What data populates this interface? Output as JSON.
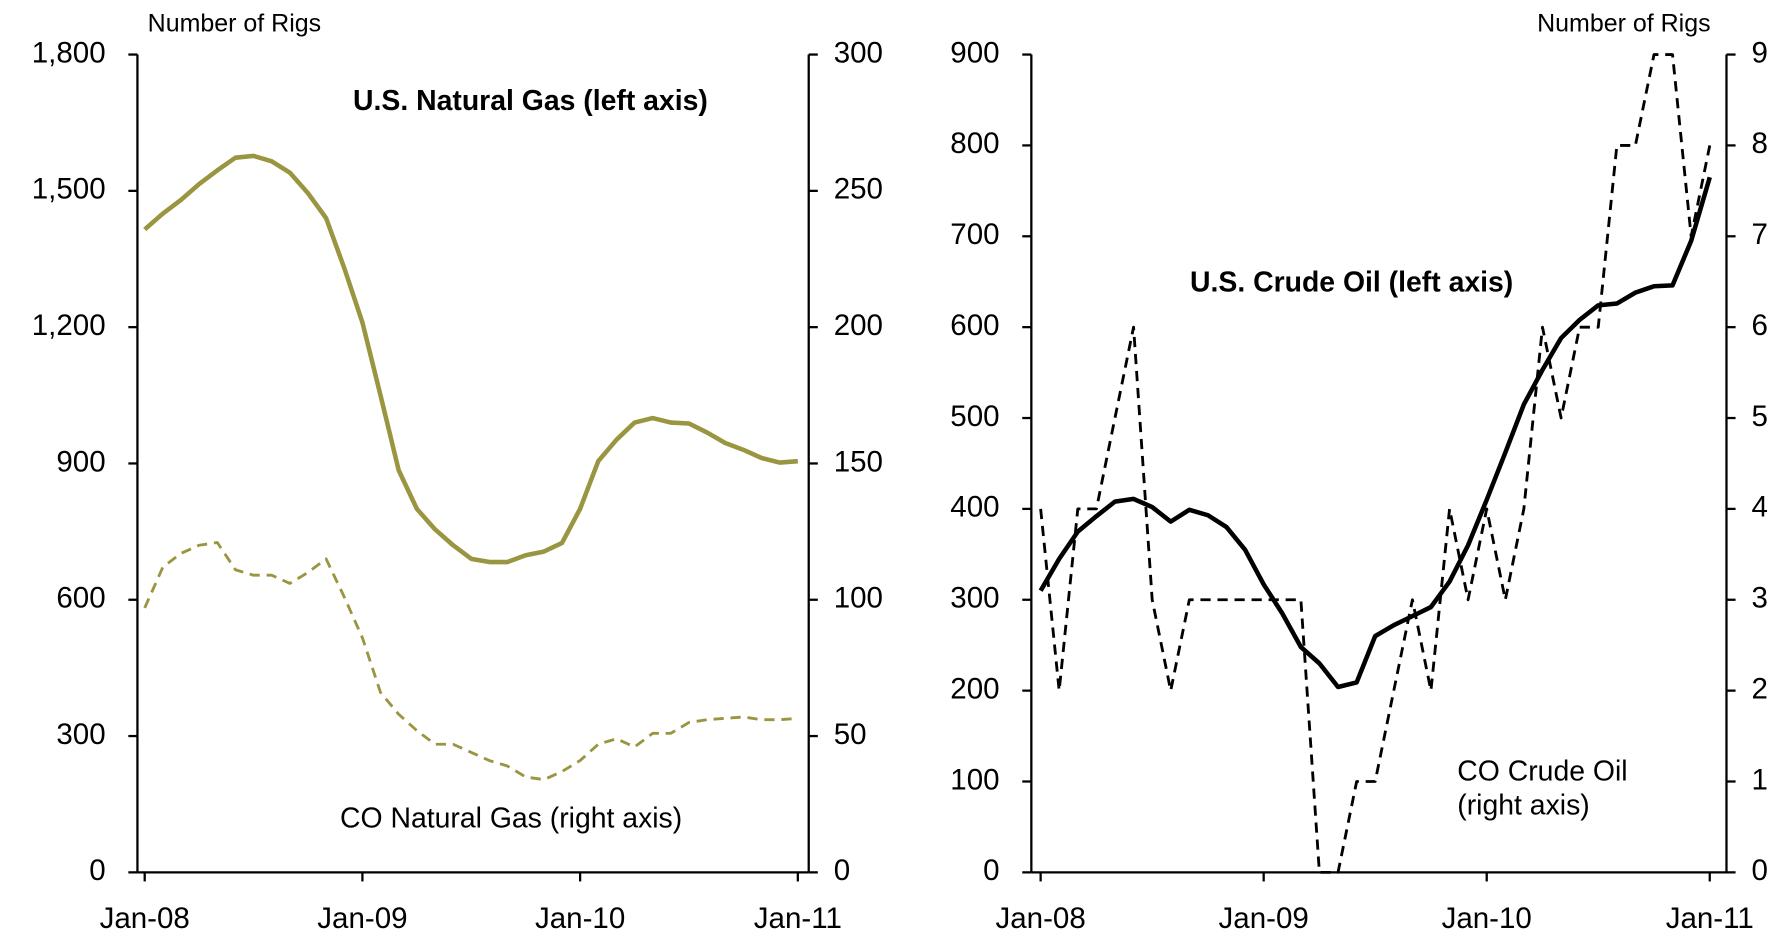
{
  "chart_data": [
    {
      "type": "line",
      "y_unit_label": "Number of Rigs",
      "x": [
        0,
        1,
        2,
        3,
        4,
        5,
        6,
        7,
        8,
        9,
        10,
        11,
        12,
        13,
        14,
        15,
        16,
        17,
        18,
        19,
        20,
        21,
        22,
        23,
        24,
        25,
        26,
        27,
        28,
        29,
        30,
        31,
        32,
        33,
        34,
        35,
        36
      ],
      "xlim": [
        -0.4,
        36.6
      ],
      "xticks": [
        {
          "value": 0,
          "label": "Jan-08"
        },
        {
          "value": 12,
          "label": "Jan-09"
        },
        {
          "value": 24,
          "label": "Jan-10"
        },
        {
          "value": 36,
          "label": "Jan-11"
        }
      ],
      "ylim": [
        0,
        1800
      ],
      "yticks": [
        0,
        300,
        600,
        900,
        {
          "value": 1200,
          "label": "1,200"
        },
        {
          "value": 1500,
          "label": "1,500"
        },
        {
          "value": 1800,
          "label": "1,800"
        }
      ],
      "y2lim": [
        0,
        300
      ],
      "y2ticks": [
        0,
        50,
        100,
        150,
        200,
        250,
        300
      ],
      "series": [
        {
          "name": "U.S. Natural Gas (left axis)",
          "color": "#9a9540",
          "line_style": "solid",
          "label_bold": true,
          "values": [
            1415,
            1450,
            1480,
            1515,
            1545,
            1573,
            1577,
            1565,
            1540,
            1495,
            1440,
            1330,
            1210,
            1050,
            885,
            800,
            755,
            720,
            690,
            683,
            683,
            698,
            706,
            725,
            800,
            905,
            952,
            990,
            1000,
            990,
            988,
            968,
            945,
            930,
            912,
            902,
            905
          ]
        },
        {
          "name": "CO Natural Gas (right axis)",
          "color": "#9a9540",
          "line_style": "dashed",
          "label_bold": false,
          "axis": "y2",
          "values": [
            97,
            112,
            117,
            120,
            121,
            111,
            109,
            109,
            106,
            110,
            115,
            101,
            86,
            66,
            58,
            52,
            47,
            47,
            44,
            41,
            39,
            35,
            34,
            37,
            41,
            47,
            49,
            46,
            51,
            51,
            55,
            56,
            56.5,
            57,
            56,
            56,
            56.5
          ]
        }
      ]
    },
    {
      "type": "line",
      "y_unit_label": "Number of Rigs",
      "x": [
        0,
        1,
        2,
        3,
        4,
        5,
        6,
        7,
        8,
        9,
        10,
        11,
        12,
        13,
        14,
        15,
        16,
        17,
        18,
        19,
        20,
        21,
        22,
        23,
        24,
        25,
        26,
        27,
        28,
        29,
        30,
        31,
        32,
        33,
        34,
        35,
        36
      ],
      "xlim": [
        -0.5,
        36.9
      ],
      "xticks": [
        {
          "value": 0,
          "label": "Jan-08"
        },
        {
          "value": 12,
          "label": "Jan-09"
        },
        {
          "value": 24,
          "label": "Jan-10"
        },
        {
          "value": 36,
          "label": "Jan-11"
        }
      ],
      "ylim": [
        0,
        900
      ],
      "yticks": [
        0,
        100,
        200,
        300,
        400,
        500,
        600,
        700,
        800,
        900
      ],
      "y2lim": [
        0,
        9
      ],
      "y2ticks": [
        0,
        1,
        2,
        3,
        4,
        5,
        6,
        7,
        8,
        9
      ],
      "series": [
        {
          "name": "U.S. Crude Oil (left axis)",
          "color": "#000000",
          "line_style": "solid",
          "label_bold": true,
          "values": [
            310,
            345,
            375,
            392,
            408,
            411,
            402,
            386,
            399,
            393,
            380,
            355,
            317,
            285,
            248,
            230,
            204,
            209,
            260,
            272,
            282,
            292,
            320,
            360,
            410,
            462,
            515,
            553,
            588,
            608,
            624,
            626,
            638,
            645,
            646,
            695,
            765
          ]
        },
        {
          "name": "CO Crude Oil (right axis)",
          "color": "#000000",
          "line_style": "dashed",
          "label_bold": false,
          "axis": "y2",
          "values": [
            4,
            2,
            4,
            4,
            5,
            6,
            3,
            2,
            3,
            3,
            3,
            3,
            3,
            3,
            3,
            0,
            0,
            1,
            1,
            2,
            3,
            2,
            4,
            3,
            4,
            3,
            4,
            6,
            5,
            6,
            6,
            8,
            8,
            9,
            9,
            7,
            8
          ]
        }
      ]
    }
  ]
}
